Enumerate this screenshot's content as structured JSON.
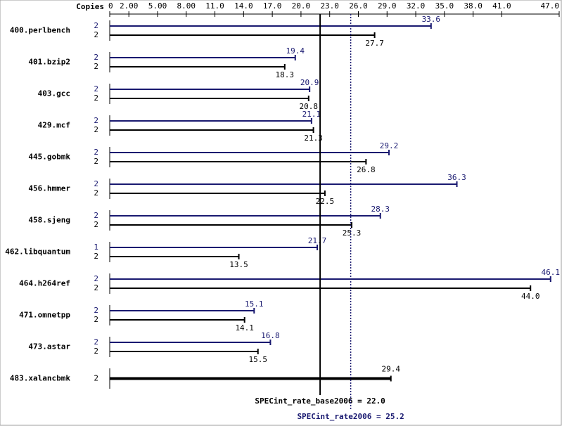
{
  "chart_data": {
    "type": "bar",
    "orientation": "horizontal",
    "copies_label": "Copies",
    "categories": [
      "400.perlbench",
      "401.bzip2",
      "403.gcc",
      "429.mcf",
      "445.gobmk",
      "456.hmmer",
      "458.sjeng",
      "462.libquantum",
      "464.h264ref",
      "471.omnetpp",
      "473.astar",
      "483.xalancbmk"
    ],
    "series": [
      {
        "color": "#191970",
        "values": [
          33.6,
          19.4,
          20.9,
          21.1,
          29.2,
          36.3,
          28.3,
          21.7,
          46.1,
          15.1,
          16.8,
          null
        ],
        "copies": [
          2,
          2,
          2,
          2,
          2,
          2,
          2,
          1,
          2,
          2,
          2,
          null
        ]
      },
      {
        "color": "#000000",
        "values": [
          27.7,
          18.3,
          20.8,
          21.3,
          26.8,
          22.5,
          25.3,
          13.5,
          44.0,
          14.1,
          15.5,
          29.4
        ],
        "value_labels": [
          "27.7",
          "18.3",
          "20.8",
          "21.3",
          "26.8",
          "22.5",
          "25.3",
          "13.5",
          "44.0",
          "14.1",
          "15.5",
          "29.4"
        ],
        "copies": [
          2,
          2,
          2,
          2,
          2,
          2,
          2,
          2,
          2,
          2,
          2,
          2
        ]
      }
    ],
    "xlim": [
      0,
      47
    ],
    "xticks": [
      0,
      {
        "value": 2,
        "label": "2.00"
      },
      {
        "value": 5,
        "label": "5.00"
      },
      {
        "value": 8,
        "label": "8.00"
      },
      {
        "value": 11,
        "label": "11.0"
      },
      {
        "value": 14,
        "label": "14.0"
      },
      {
        "value": 17,
        "label": "17.0"
      },
      {
        "value": 20,
        "label": "20.0"
      },
      {
        "value": 23,
        "label": "23.0"
      },
      {
        "value": 26,
        "label": "26.0"
      },
      {
        "value": 29,
        "label": "29.0"
      },
      {
        "value": 32,
        "label": "32.0"
      },
      {
        "value": 35,
        "label": "35.0"
      },
      {
        "value": 38,
        "label": "38.0"
      },
      {
        "value": 41,
        "label": "41.0"
      },
      {
        "value": 47,
        "label": "47.0"
      }
    ],
    "reference_lines": [
      {
        "label": "SPECint_rate_base2006 = 22.0",
        "value": 22.0,
        "color": "#000000",
        "style": "solid"
      },
      {
        "label": "SPECint_rate2006 = 25.2",
        "value": 25.2,
        "color": "#191970",
        "style": "dotted"
      }
    ]
  }
}
